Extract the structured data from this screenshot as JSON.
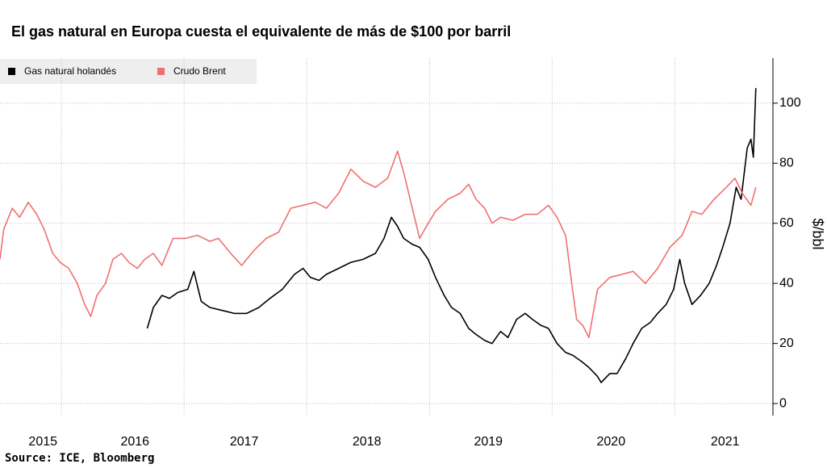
{
  "chart_data": {
    "type": "line",
    "title": "El gas natural en Europa cuesta el equivalente de más de $100 por barril",
    "y_label": "$/bbl",
    "source": "Source: ICE, Bloomberg",
    "xlim": [
      2015.5,
      2021.78
    ],
    "xticks": [
      {
        "value": 2015.85,
        "label": "2015"
      },
      {
        "value": 2016.6,
        "label": "2016"
      },
      {
        "value": 2017.49,
        "label": "2017"
      },
      {
        "value": 2018.49,
        "label": "2018"
      },
      {
        "value": 2019.48,
        "label": "2019"
      },
      {
        "value": 2020.48,
        "label": "2020"
      },
      {
        "value": 2021.41,
        "label": "2021"
      }
    ],
    "ylim": [
      -4,
      115
    ],
    "yticks": [
      0,
      20,
      40,
      60,
      80,
      100
    ],
    "grid": true,
    "legend": "top-left",
    "series": [
      {
        "name": "Gas natural holandés",
        "color": "#000000",
        "x": [
          2016.7,
          2016.75,
          2016.82,
          2016.88,
          2016.95,
          2017.03,
          2017.08,
          2017.14,
          2017.21,
          2017.31,
          2017.41,
          2017.51,
          2017.61,
          2017.7,
          2017.8,
          2017.9,
          2017.97,
          2018.03,
          2018.1,
          2018.16,
          2018.26,
          2018.36,
          2018.46,
          2018.56,
          2018.63,
          2018.69,
          2018.74,
          2018.79,
          2018.86,
          2018.92,
          2018.99,
          2019.05,
          2019.12,
          2019.18,
          2019.25,
          2019.32,
          2019.38,
          2019.45,
          2019.51,
          2019.58,
          2019.64,
          2019.71,
          2019.78,
          2019.84,
          2019.91,
          2019.97,
          2020.04,
          2020.11,
          2020.17,
          2020.24,
          2020.3,
          2020.37,
          2020.4,
          2020.47,
          2020.53,
          2020.6,
          2020.66,
          2020.73,
          2020.8,
          2020.86,
          2020.93,
          2020.99,
          2021.04,
          2021.08,
          2021.14,
          2021.21,
          2021.28,
          2021.34,
          2021.39,
          2021.45,
          2021.5,
          2021.54,
          2021.59,
          2021.62,
          2021.64,
          2021.66
        ],
        "values": [
          25,
          32,
          36,
          35,
          37,
          38,
          44,
          34,
          32,
          31,
          30,
          30,
          32,
          35,
          38,
          43,
          45,
          42,
          41,
          43,
          45,
          47,
          48,
          50,
          55,
          62,
          59,
          55,
          53,
          52,
          48,
          42,
          36,
          32,
          30,
          25,
          23,
          21,
          20,
          24,
          22,
          28,
          30,
          28,
          26,
          25,
          20,
          17,
          16,
          14,
          12,
          9,
          7,
          10,
          10,
          15,
          20,
          25,
          27,
          30,
          33,
          38,
          48,
          40,
          33,
          36,
          40,
          46,
          52,
          60,
          72,
          68,
          85,
          88,
          82,
          105
        ]
      },
      {
        "name": "Crudo Brent",
        "color": "#f07070",
        "x": [
          2015.5,
          2015.53,
          2015.6,
          2015.66,
          2015.73,
          2015.8,
          2015.86,
          2015.93,
          2015.99,
          2016.06,
          2016.13,
          2016.19,
          2016.24,
          2016.29,
          2016.36,
          2016.42,
          2016.49,
          2016.55,
          2016.62,
          2016.68,
          2016.75,
          2016.82,
          2016.91,
          2017.01,
          2017.11,
          2017.21,
          2017.28,
          2017.38,
          2017.47,
          2017.57,
          2017.67,
          2017.77,
          2017.87,
          2017.97,
          2018.07,
          2018.16,
          2018.26,
          2018.36,
          2018.46,
          2018.56,
          2018.66,
          2018.74,
          2018.79,
          2018.86,
          2018.92,
          2018.99,
          2019.05,
          2019.15,
          2019.25,
          2019.32,
          2019.38,
          2019.45,
          2019.51,
          2019.58,
          2019.68,
          2019.78,
          2019.88,
          2019.97,
          2020.04,
          2020.11,
          2020.16,
          2020.2,
          2020.25,
          2020.3,
          2020.37,
          2020.47,
          2020.57,
          2020.66,
          2020.76,
          2020.86,
          2020.96,
          2021.06,
          2021.14,
          2021.22,
          2021.32,
          2021.42,
          2021.49,
          2021.55,
          2021.62,
          2021.66
        ],
        "values": [
          48,
          58,
          65,
          62,
          67,
          63,
          58,
          50,
          47,
          45,
          40,
          33,
          29,
          36,
          40,
          48,
          50,
          47,
          45,
          48,
          50,
          46,
          55,
          55,
          56,
          54,
          55,
          50,
          46,
          51,
          55,
          57,
          65,
          66,
          67,
          65,
          70,
          78,
          74,
          72,
          75,
          84,
          77,
          65,
          55,
          60,
          64,
          68,
          70,
          73,
          68,
          65,
          60,
          62,
          61,
          63,
          63,
          66,
          62,
          56,
          40,
          28,
          26,
          22,
          38,
          42,
          43,
          44,
          40,
          45,
          52,
          56,
          64,
          63,
          68,
          72,
          75,
          70,
          66,
          72
        ]
      }
    ]
  }
}
